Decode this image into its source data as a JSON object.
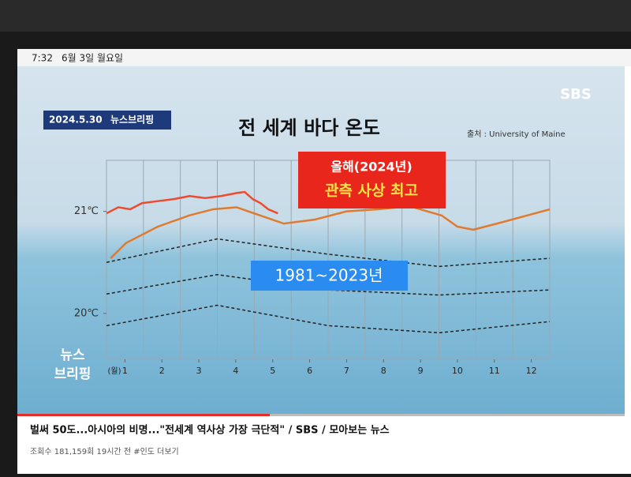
{
  "status_bar": {
    "time": "7:32",
    "date": "6월 3일 월요일"
  },
  "video_overlay": {
    "date": "2024.5.30",
    "program": "뉴스브리핑",
    "source": "출처 : University of Maine",
    "channel": "SBS",
    "corner_logo": [
      "뉴스",
      "브리핑"
    ]
  },
  "chart_data": {
    "type": "line",
    "title": "전 세계 바다 온도",
    "x_label": "(월)",
    "annotations": [
      "올해(2024년)",
      "관측 사상 최고",
      "1981~2023년"
    ],
    "xlim": [
      0.5,
      12.5
    ],
    "xticks": [
      1,
      2,
      3,
      4,
      5,
      6,
      7,
      8,
      9,
      10,
      11,
      12
    ],
    "ylim": [
      19.55,
      21.5
    ],
    "yticks": [
      {
        "value": 20,
        "label": "20℃"
      },
      {
        "value": 21,
        "label": "21℃"
      }
    ],
    "series": [
      {
        "color": "#222222",
        "dash": true,
        "x": [
          0.5,
          3.5,
          6.5,
          9.5,
          12.5
        ],
        "values": [
          20.5,
          20.73,
          20.58,
          20.46,
          20.54
        ]
      },
      {
        "color": "#222222",
        "dash": true,
        "x": [
          0.5,
          3.5,
          6.5,
          9.5,
          12.5
        ],
        "values": [
          20.19,
          20.38,
          20.23,
          20.18,
          20.23
        ]
      },
      {
        "color": "#222222",
        "dash": true,
        "x": [
          0.5,
          3.5,
          6.5,
          9.5,
          12.5
        ],
        "values": [
          19.88,
          20.08,
          19.88,
          19.81,
          19.92
        ]
      },
      {
        "color": "#e07a2e",
        "dash": false,
        "x": [
          0.61,
          1.03,
          1.89,
          2.74,
          3.38,
          4.02,
          4.66,
          5.3,
          6.15,
          7.0,
          7.86,
          8.71,
          9.57,
          10.0,
          10.43,
          11.07,
          12.5
        ],
        "values": [
          20.54,
          20.69,
          20.85,
          20.96,
          21.02,
          21.04,
          20.96,
          20.88,
          20.92,
          21.0,
          21.02,
          21.05,
          20.96,
          20.85,
          20.82,
          20.88,
          21.02
        ]
      },
      {
        "color": "#f04a2c",
        "dash": false,
        "x": [
          0.5,
          0.82,
          1.14,
          1.46,
          1.89,
          2.32,
          2.75,
          3.17,
          3.6,
          4.03,
          4.24,
          4.46,
          4.67,
          4.88,
          5.14
        ],
        "values": [
          20.98,
          21.04,
          21.02,
          21.08,
          21.1,
          21.12,
          21.15,
          21.13,
          21.15,
          21.18,
          21.19,
          21.12,
          21.08,
          21.02,
          20.98
        ]
      }
    ]
  },
  "video_info": {
    "title": "벌써 50도...아시아의 비명...\"전세계 역사상 가장 극단적\" / SBS / 모아보는 뉴스",
    "meta": "조회수 181,159회 19시간 전 #인도 더보기"
  }
}
